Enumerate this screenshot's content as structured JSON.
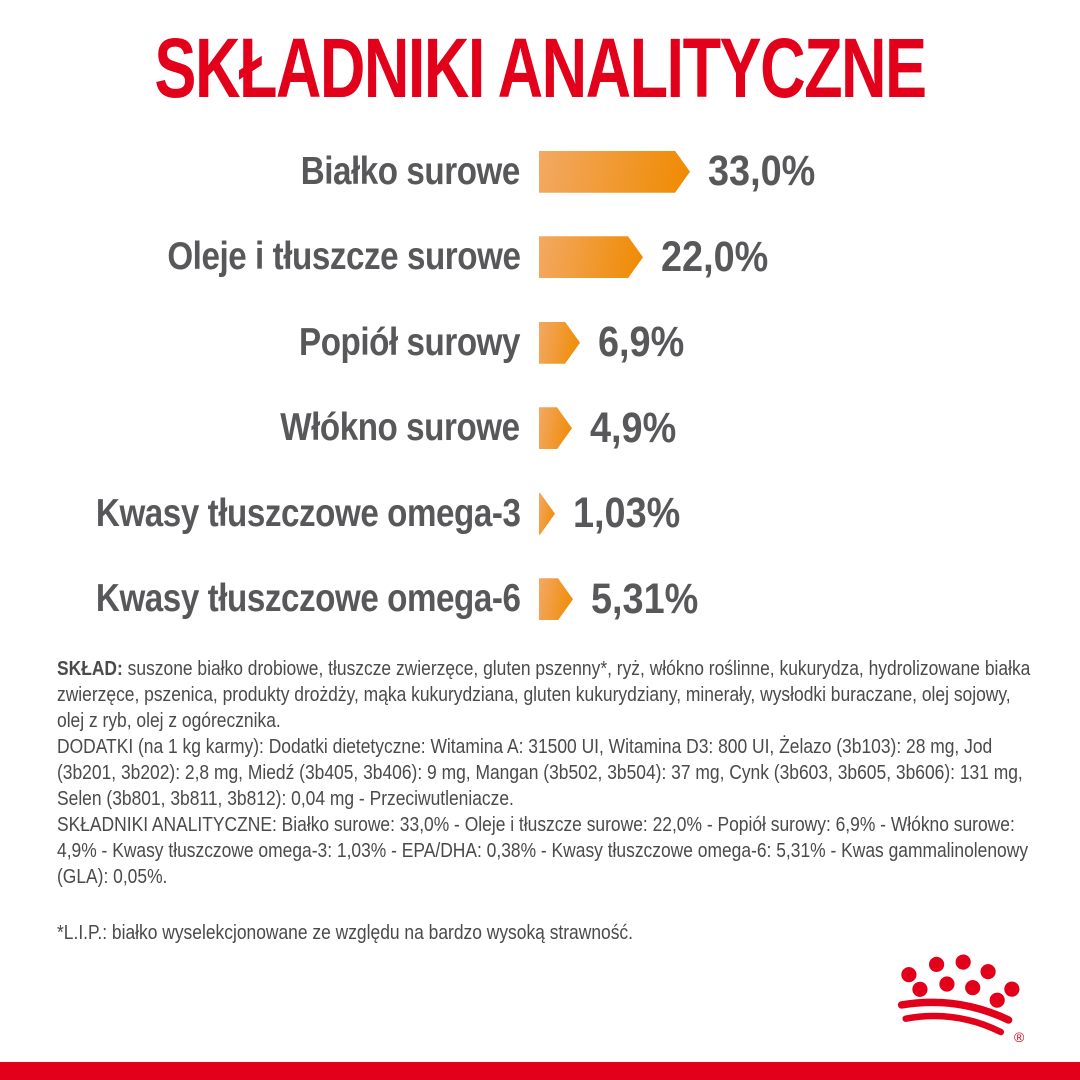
{
  "page": {
    "background": "#ffffff",
    "accent_red": "#E2001A",
    "label_gray": "#58585A",
    "body_text_color": "#4A4A4C"
  },
  "title": "SKŁADNIKI ANALITYCZNE",
  "chart_data": {
    "type": "bar",
    "orientation": "horizontal",
    "unit": "%",
    "title": "SKŁADNIKI ANALITYCZNE",
    "categories": [
      "Białko surowe",
      "Oleje i tłuszcze surowe",
      "Popiół surowy",
      "Włókno surowe",
      "Kwasy tłuszczowe omega-3",
      "Kwasy tłuszczowe omega-6"
    ],
    "values": [
      33.0,
      22.0,
      6.9,
      4.9,
      1.03,
      5.31
    ],
    "value_labels": [
      "33,0%",
      "22,0%",
      "6,9%",
      "4,9%",
      "1,03%",
      "5,31%"
    ],
    "bar_color_start": "#F3A964",
    "bar_color_end": "#EF8A00",
    "bar_shape": "right-arrow",
    "legend": "none",
    "grid": "off"
  },
  "info": {
    "sklad_label": "SKŁAD:",
    "sklad_text": "suszone białko drobiowe, tłuszcze zwierzęce, gluten pszenny*, ryż, włókno roślinne, kukurydza, hydrolizowane białka zwierzęce, pszenica, produkty drożdży, mąka kukurydziana, gluten kukurydziany, minerały, wysłodki buraczane, olej sojowy, olej z ryb, olej z ogórecznika.",
    "dodatki_text": "DODATKI (na 1 kg karmy): Dodatki dietetyczne: Witamina A: 31500 UI, Witamina D3: 800 UI, Żelazo (3b103): 28 mg, Jod (3b201, 3b202): 2,8 mg, Miedź (3b405, 3b406): 9 mg, Mangan (3b502, 3b504): 37 mg, Cynk (3b603, 3b605, 3b606): 131 mg, Selen (3b801, 3b811, 3b812): 0,04 mg - Przeciwutleniacze.",
    "analityczne_text": "SKŁADNIKI ANALITYCZNE: Białko surowe: 33,0% - Oleje i tłuszcze surowe: 22,0% - Popiół surowy: 6,9% - Włókno surowe: 4,9% - Kwasy tłuszczowe omega-3: 1,03% - EPA/DHA: 0,38% - Kwasy tłuszczowe omega-6: 5,31% - Kwas gammalinolenowy (GLA): 0,05%.",
    "footnote": "*L.I.P.: białko wyselekcjonowane ze względu na bardzo wysoką strawność."
  },
  "logo": {
    "name": "royal-canin-crown",
    "color": "#E2001A",
    "registered_mark": "®"
  }
}
